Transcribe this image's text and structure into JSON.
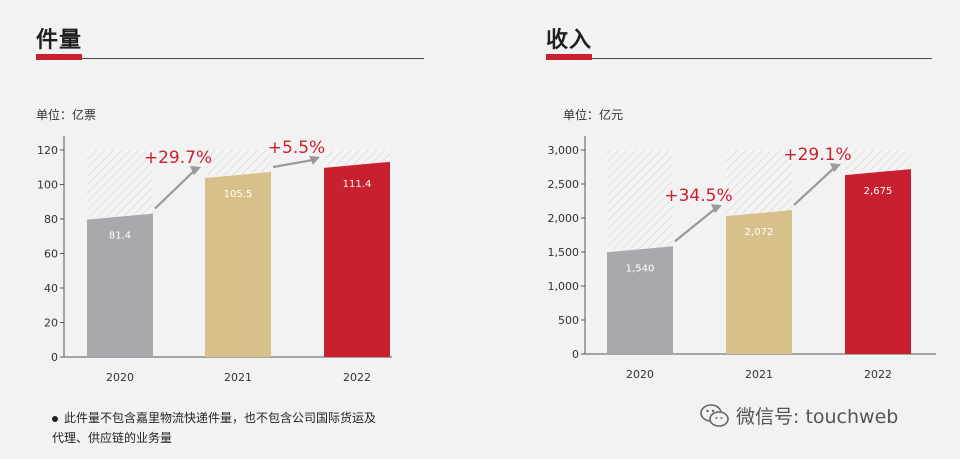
{
  "chart_data": [
    {
      "type": "bar",
      "title": "件量",
      "unit_label": "单位：亿票",
      "categories": [
        "2020",
        "2021",
        "2022"
      ],
      "values": [
        81.4,
        105.5,
        111.4
      ],
      "value_labels": [
        "81.4",
        "105.5",
        "111.4"
      ],
      "y_ticks": [
        "0",
        "20",
        "40",
        "60",
        "80",
        "100",
        "120"
      ],
      "ylim": [
        0,
        120
      ],
      "growth_labels": [
        "+29.7%",
        "+5.5%"
      ],
      "colors": [
        "#a8a9ad",
        "#d8c08a",
        "#c8202f"
      ],
      "accent": "#c8202f",
      "grid": false
    },
    {
      "type": "bar",
      "title": "收入",
      "unit_label": "单位：亿元",
      "categories": [
        "2020",
        "2021",
        "2022"
      ],
      "values": [
        1540,
        2072,
        2675
      ],
      "value_labels": [
        "1,540",
        "2,072",
        "2,675"
      ],
      "y_ticks": [
        "0",
        "500",
        "1,000",
        "1,500",
        "2,000",
        "2,500",
        "3,000"
      ],
      "ylim": [
        0,
        3000
      ],
      "growth_labels": [
        "+34.5%",
        "+29.1%"
      ],
      "colors": [
        "#a8a9ad",
        "#d8c08a",
        "#c8202f"
      ],
      "accent": "#c8202f",
      "grid": false
    }
  ],
  "footnote": {
    "line1": "此件量不包含嘉里物流快递件量，也不包含公司国际货运及",
    "line2": "代理、供应链的业务量"
  },
  "watermark": {
    "icon": "wechat-icon",
    "text": "微信号: touchweb"
  }
}
